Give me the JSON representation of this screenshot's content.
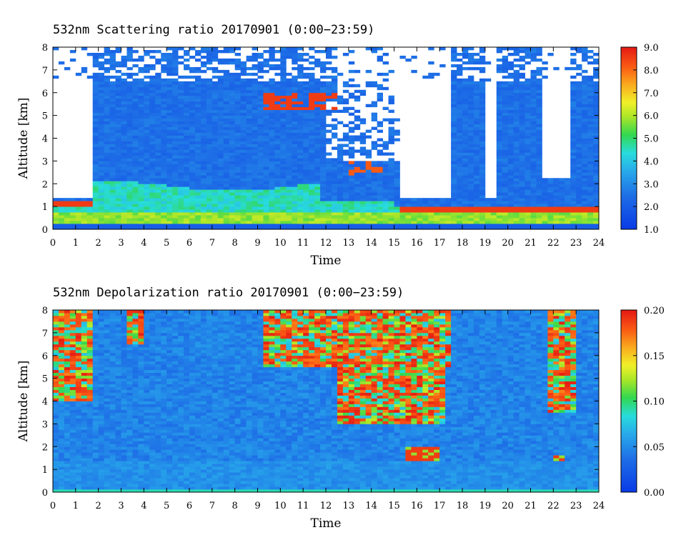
{
  "chart_data": [
    {
      "type": "heatmap",
      "title": "532nm Scattering ratio  20170901 (0:00−23:59)",
      "xlabel": "Time",
      "ylabel": "Altitude [km]",
      "xlim": [
        0,
        24
      ],
      "ylim": [
        0,
        8
      ],
      "x_ticks": [
        "0",
        "1",
        "2",
        "3",
        "4",
        "5",
        "6",
        "7",
        "8",
        "9",
        "10",
        "11",
        "12",
        "13",
        "14",
        "15",
        "16",
        "17",
        "18",
        "19",
        "20",
        "21",
        "22",
        "23",
        "24"
      ],
      "y_ticks": [
        "0",
        "1",
        "2",
        "3",
        "4",
        "5",
        "6",
        "7",
        "8"
      ],
      "colorbar": {
        "range": [
          1.0,
          9.0
        ],
        "ticks": [
          "1.0",
          "2.0",
          "3.0",
          "4.0",
          "5.0",
          "6.0",
          "7.0",
          "8.0",
          "9.0"
        ]
      }
    },
    {
      "type": "heatmap",
      "title": "532nm Depolarization ratio  20170901 (0:00−23:59)",
      "xlabel": "Time",
      "ylabel": "Altitude [km]",
      "xlim": [
        0,
        24
      ],
      "ylim": [
        0,
        8
      ],
      "x_ticks": [
        "0",
        "1",
        "2",
        "3",
        "4",
        "5",
        "6",
        "7",
        "8",
        "9",
        "10",
        "11",
        "12",
        "13",
        "14",
        "15",
        "16",
        "17",
        "18",
        "19",
        "20",
        "21",
        "22",
        "23",
        "24"
      ],
      "y_ticks": [
        "0",
        "1",
        "2",
        "3",
        "4",
        "5",
        "6",
        "7",
        "8"
      ],
      "colorbar": {
        "range": [
          0.0,
          0.2
        ],
        "ticks": [
          "0.00",
          "0.05",
          "0.10",
          "0.15",
          "0.20"
        ]
      }
    }
  ]
}
